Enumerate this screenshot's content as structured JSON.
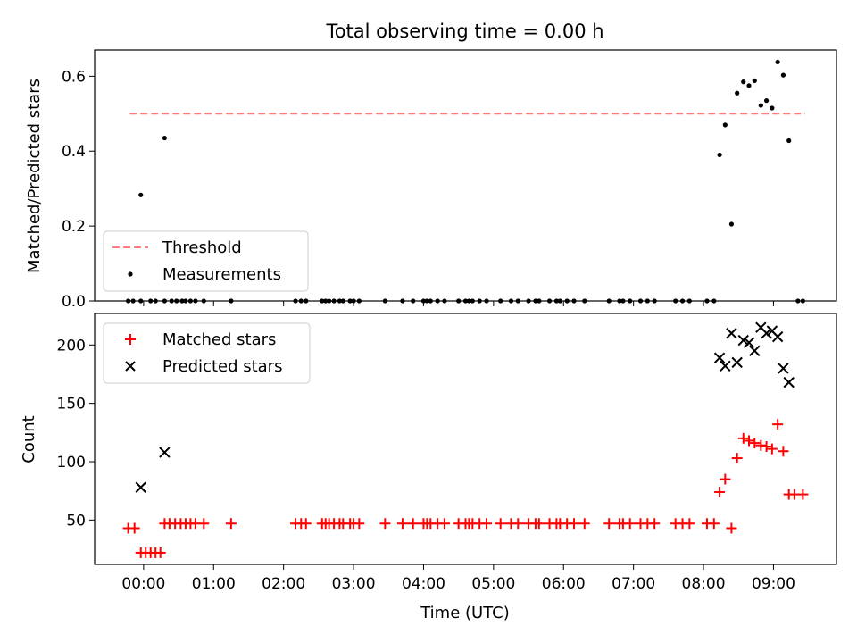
{
  "chart_data": [
    {
      "type": "scatter",
      "title": "Total observing time = 0.00 h",
      "xlabel": "",
      "ylabel": "Matched/Predicted stars",
      "ylim": [
        0,
        0.67
      ],
      "yticks": [
        0.0,
        0.2,
        0.4,
        0.6
      ],
      "ytick_labels": [
        "0.0",
        "0.2",
        "0.4",
        "0.6"
      ],
      "xlim": [
        -0.7,
        9.9
      ],
      "threshold": {
        "name": "Threshold",
        "y": 0.5,
        "x": [
          -0.2,
          9.45
        ],
        "color": "#ff7f7f",
        "style": "dashed"
      },
      "series": [
        {
          "name": "Measurements",
          "color": "#000000",
          "marker": "dot",
          "x": [
            -0.22,
            -0.15,
            -0.04,
            0.1,
            0.17,
            0.3,
            0.4,
            0.47,
            0.55,
            0.6,
            0.67,
            0.74,
            0.86,
            1.25,
            2.17,
            2.25,
            2.32,
            2.55,
            2.6,
            2.65,
            2.72,
            2.8,
            2.85,
            2.95,
            3.0,
            3.08,
            3.45,
            3.7,
            3.85,
            4.0,
            4.05,
            4.1,
            4.2,
            4.3,
            4.5,
            4.6,
            4.65,
            4.7,
            4.8,
            4.9,
            5.1,
            5.25,
            5.35,
            5.5,
            5.6,
            5.65,
            5.8,
            5.9,
            5.95,
            6.05,
            6.15,
            6.3,
            6.65,
            6.8,
            6.85,
            6.95,
            7.1,
            7.2,
            7.3,
            7.6,
            7.7,
            7.8,
            8.05,
            8.15,
            9.35,
            9.42,
            -0.04,
            0.3,
            8.23,
            8.31,
            8.4,
            8.48,
            8.57,
            8.65,
            8.73,
            8.82,
            8.9,
            8.98,
            9.06,
            9.14,
            9.22
          ],
          "y": [
            0,
            0,
            0,
            0,
            0,
            0,
            0,
            0,
            0,
            0,
            0,
            0,
            0,
            0,
            0,
            0,
            0,
            0,
            0,
            0,
            0,
            0,
            0,
            0,
            0,
            0,
            0,
            0,
            0,
            0,
            0,
            0,
            0,
            0,
            0,
            0,
            0,
            0,
            0,
            0,
            0,
            0,
            0,
            0,
            0,
            0,
            0,
            0,
            0,
            0,
            0,
            0,
            0,
            0,
            0,
            0,
            0,
            0,
            0,
            0,
            0,
            0,
            0,
            0,
            0,
            0,
            0.283,
            0.435,
            0.39,
            0.47,
            0.205,
            0.555,
            0.585,
            0.575,
            0.588,
            0.522,
            0.535,
            0.515,
            0.638,
            0.603,
            0.428
          ]
        }
      ],
      "legend": "lower-left",
      "legend_entries": [
        "Threshold",
        "Measurements"
      ]
    },
    {
      "type": "scatter",
      "title": "",
      "xlabel": "Time (UTC)",
      "ylabel": "Count",
      "ylim": [
        12,
        227
      ],
      "yticks": [
        50,
        100,
        150,
        200
      ],
      "ytick_labels": [
        "50",
        "100",
        "150",
        "200"
      ],
      "xlim": [
        -0.7,
        9.9
      ],
      "xticks": [
        0,
        1,
        2,
        3,
        4,
        5,
        6,
        7,
        8,
        9
      ],
      "xtick_labels": [
        "00:00",
        "01:00",
        "02:00",
        "03:00",
        "04:00",
        "05:00",
        "06:00",
        "07:00",
        "08:00",
        "09:00"
      ],
      "series": [
        {
          "name": "Matched stars",
          "color": "#ff0000",
          "marker": "plus",
          "x": [
            -0.22,
            -0.13,
            -0.04,
            0.03,
            0.1,
            0.17,
            0.24,
            0.3,
            0.37,
            0.45,
            0.53,
            0.6,
            0.67,
            0.74,
            0.86,
            1.25,
            2.17,
            2.25,
            2.32,
            2.55,
            2.6,
            2.65,
            2.72,
            2.8,
            2.85,
            2.95,
            3.0,
            3.08,
            3.45,
            3.7,
            3.85,
            4.0,
            4.05,
            4.1,
            4.2,
            4.3,
            4.5,
            4.6,
            4.65,
            4.7,
            4.8,
            4.9,
            5.1,
            5.25,
            5.35,
            5.5,
            5.6,
            5.65,
            5.8,
            5.9,
            5.95,
            6.05,
            6.15,
            6.3,
            6.65,
            6.8,
            6.85,
            6.95,
            7.1,
            7.2,
            7.3,
            7.6,
            7.7,
            7.8,
            8.05,
            8.15,
            8.23,
            8.31,
            8.4,
            8.48,
            8.57,
            8.65,
            8.73,
            8.82,
            8.9,
            8.98,
            9.06,
            9.14,
            9.22,
            9.3,
            9.42
          ],
          "y": [
            43,
            43,
            22,
            22,
            22,
            22,
            22,
            47,
            47,
            47,
            47,
            47,
            47,
            47,
            47,
            47,
            47,
            47,
            47,
            47,
            47,
            47,
            47,
            47,
            47,
            47,
            47,
            47,
            47,
            47,
            47,
            47,
            47,
            47,
            47,
            47,
            47,
            47,
            47,
            47,
            47,
            47,
            47,
            47,
            47,
            47,
            47,
            47,
            47,
            47,
            47,
            47,
            47,
            47,
            47,
            47,
            47,
            47,
            47,
            47,
            47,
            47,
            47,
            47,
            47,
            47,
            74,
            85,
            43,
            103,
            120,
            118,
            116,
            114,
            113,
            111,
            132,
            109,
            72,
            72,
            72
          ]
        },
        {
          "name": "Predicted stars",
          "color": "#000000",
          "marker": "x",
          "x": [
            -0.04,
            0.3,
            8.23,
            8.31,
            8.4,
            8.48,
            8.57,
            8.65,
            8.73,
            8.82,
            8.9,
            8.98,
            9.06,
            9.14,
            9.22
          ],
          "y": [
            78,
            108,
            189,
            182,
            210,
            185,
            204,
            202,
            195,
            215,
            210,
            212,
            207,
            180,
            168
          ]
        }
      ],
      "legend": "upper-left",
      "legend_entries": [
        "Matched stars",
        "Predicted stars"
      ]
    }
  ]
}
